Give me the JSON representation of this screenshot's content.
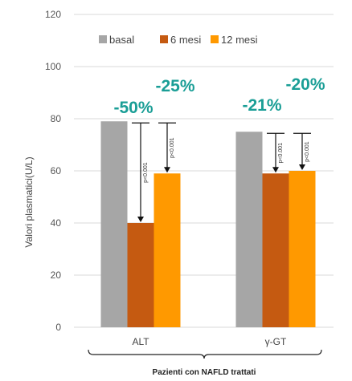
{
  "chart_data": {
    "type": "bar",
    "ylabel": "Valori plasmatici(U/L)",
    "xlabel": "Pazienti con NAFLD trattati",
    "ylim": [
      0,
      120
    ],
    "yticks": [
      "0",
      "20",
      "40",
      "60",
      "80",
      "100",
      "120"
    ],
    "categories": [
      "ALT",
      "γ-GT"
    ],
    "series": [
      {
        "name": "basal",
        "color": "#a6a6a6",
        "values": [
          79,
          75
        ]
      },
      {
        "name": "6 mesi",
        "color": "#c55a11",
        "values": [
          40,
          59
        ]
      },
      {
        "name": "12 mesi",
        "color": "#ff9900",
        "values": [
          59,
          60
        ]
      }
    ],
    "legend_position": "top",
    "grid": "horizontal",
    "annotations": [
      {
        "category": "ALT",
        "series": "6 mesi",
        "change": "-50%",
        "p": "p<0.001"
      },
      {
        "category": "ALT",
        "series": "12 mesi",
        "change": "-25%",
        "p": "p<0.001"
      },
      {
        "category": "γ-GT",
        "series": "6 mesi",
        "change": "-21%",
        "p": "p<0.001"
      },
      {
        "category": "γ-GT",
        "series": "12 mesi",
        "change": "-20%",
        "p": "p<0.001"
      }
    ]
  }
}
